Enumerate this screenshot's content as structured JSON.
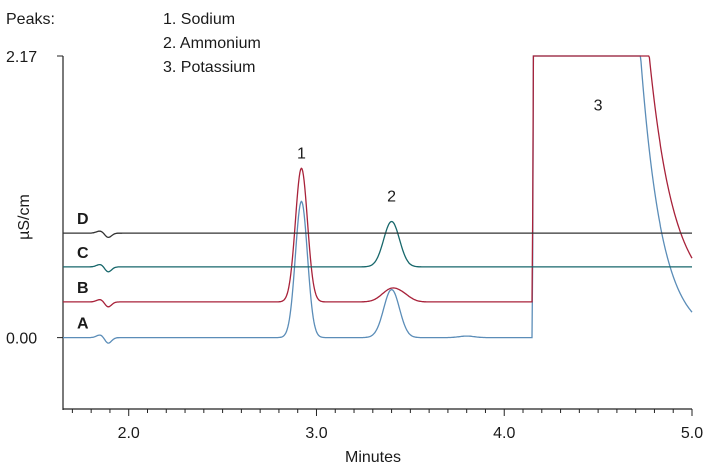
{
  "chart_data": {
    "type": "line",
    "xlabel": "Minutes",
    "ylabel": "µS/cm",
    "xlim": [
      1.65,
      5.0
    ],
    "ylim": [
      -0.55,
      2.17
    ],
    "x_ticks": [
      {
        "value": 2.0,
        "label": "2.0"
      },
      {
        "value": 3.0,
        "label": "3.0"
      },
      {
        "value": 4.0,
        "label": "4.0"
      },
      {
        "value": 5.0,
        "label": "5.0"
      }
    ],
    "y_ticks": [
      {
        "value": 0.0,
        "label": "0.00"
      },
      {
        "value": 2.17,
        "label": "2.17"
      }
    ],
    "legend": {
      "header": "Peaks:",
      "items": [
        "1. Sodium",
        "2. Ammonium",
        "3. Potassium"
      ]
    },
    "peak_annotations": [
      {
        "label": "1",
        "x": 2.92,
        "y": 1.38
      },
      {
        "label": "2",
        "x": 3.4,
        "y": 1.05
      },
      {
        "label": "3",
        "x": 4.5,
        "y": 1.75
      }
    ],
    "series": [
      {
        "name": "A",
        "color": "#5b8db8",
        "offset": 0.0,
        "saturation": 2.17,
        "dip": {
          "x": 1.89,
          "depth": 0.045
        },
        "peaks": [
          {
            "x": 2.92,
            "height": 1.05,
            "width": 0.032
          },
          {
            "x": 3.4,
            "height": 0.37,
            "width": 0.042
          },
          {
            "x": 3.8,
            "height": 0.012,
            "width": 0.04
          }
        ],
        "k_peak": {
          "x": 4.42,
          "height": 5.5,
          "width": 0.19
        }
      },
      {
        "name": "B",
        "color": "#a8223a",
        "offset": 0.275,
        "saturation": 2.17,
        "dip": {
          "x": 1.89,
          "depth": 0.04
        },
        "peaks": [
          {
            "x": 2.92,
            "height": 1.03,
            "width": 0.032
          },
          {
            "x": 3.4,
            "height": 0.1,
            "width": 0.05
          },
          {
            "x": 3.47,
            "height": 0.03,
            "width": 0.04
          }
        ],
        "k_peak": {
          "x": 4.42,
          "height": 6.0,
          "width": 0.22
        }
      },
      {
        "name": "C",
        "color": "#17676b",
        "offset": 0.545,
        "saturation": 2.17,
        "dip": {
          "x": 1.89,
          "depth": 0.04
        },
        "peaks": [
          {
            "x": 3.4,
            "height": 0.35,
            "width": 0.042
          }
        ],
        "k_peak": null
      },
      {
        "name": "D",
        "color": "#333333",
        "offset": 0.805,
        "saturation": 2.17,
        "dip": {
          "x": 1.89,
          "depth": 0.035
        },
        "peaks": [],
        "k_peak": null
      }
    ],
    "grid": false
  }
}
